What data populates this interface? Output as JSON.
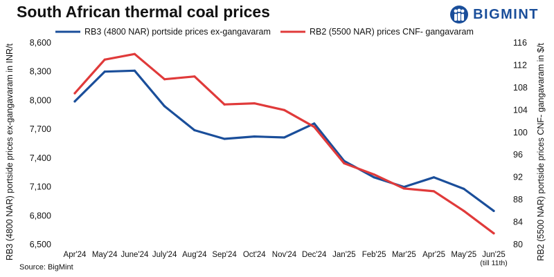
{
  "brand": {
    "name": "BIGMINT",
    "color": "#1a4e9a"
  },
  "source": "Source: BigMint",
  "chart_data": {
    "type": "line",
    "title": "South African thermal coal prices",
    "categories": [
      "Apr'24",
      "May'24",
      "June'24",
      "July'24",
      "Aug'24",
      "Sep'24",
      "Oct'24",
      "Nov'24",
      "Dec'24",
      "Jan'25",
      "Feb'25",
      "Mar'25",
      "Apr'25",
      "May'25",
      "Jun'25"
    ],
    "category_sublabels": {
      "14": "(till 11th)"
    },
    "ylabel": "RB3 (4800 NAR) portside prices ex-gangavaram  in INR/t",
    "y2label": "RB2 (5500 NAR) portside prices CNF- gangavaram  in $/t",
    "ylim": [
      6500,
      8600
    ],
    "y_ticks": [
      6500,
      6800,
      7100,
      7400,
      7700,
      8000,
      8300,
      8600
    ],
    "y_tick_labels": [
      "6,500",
      "6,800",
      "7,100",
      "7,400",
      "7,700",
      "8,000",
      "8,300",
      "8,600"
    ],
    "y2lim": [
      80,
      116
    ],
    "y2_ticks": [
      80,
      84,
      88,
      92,
      96,
      100,
      104,
      108,
      112,
      116
    ],
    "grid": false,
    "legend_position": "top",
    "series": [
      {
        "name": "RB3 (4800 NAR) portside prices ex-gangavaram",
        "axis": "left",
        "color": "#1a4e9a",
        "values": [
          7990,
          8300,
          8310,
          7940,
          7690,
          7600,
          7625,
          7615,
          7760,
          7370,
          7200,
          7100,
          7200,
          7080,
          6850
        ]
      },
      {
        "name": "RB2 (5500 NAR) prices CNF- gangavaram",
        "axis": "right",
        "color": "#e03a3a",
        "values": [
          107,
          113,
          114,
          109.5,
          110,
          105,
          105.2,
          104,
          101,
          94.5,
          92.5,
          90,
          89.5,
          86,
          82
        ]
      }
    ]
  }
}
